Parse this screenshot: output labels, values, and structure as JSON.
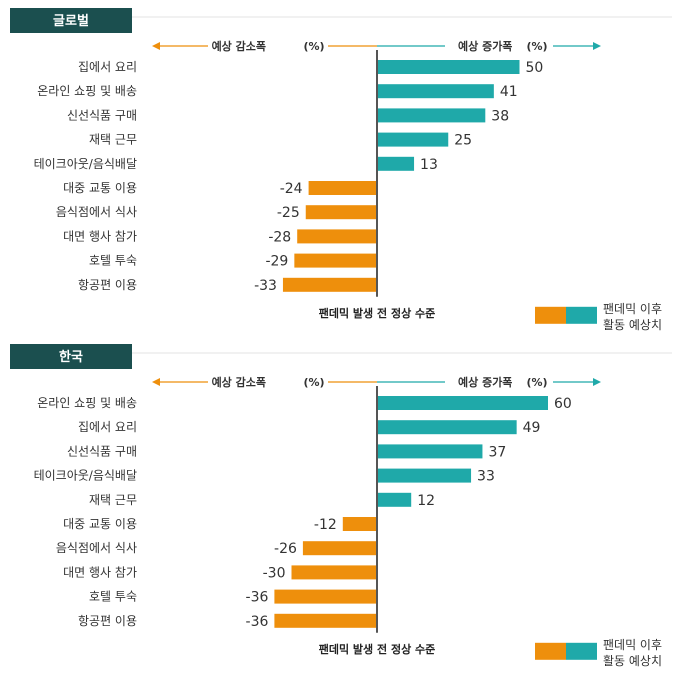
{
  "colors": {
    "increase": "#1fa9a9",
    "decrease": "#ee8f0c",
    "tag_bg": "#1b4f4f",
    "axis": "#555555"
  },
  "legend": {
    "line1": "팬데믹 이후",
    "line2": "활동 예상치"
  },
  "chart_data": [
    {
      "type": "bar",
      "orientation": "horizontal",
      "title": "글로벌",
      "decrease_header": "예상 감소폭",
      "increase_header": "예상 증가폭",
      "unit": "(%)",
      "baseline_label": "팬데믹 발생 전 정상 수준",
      "categories": [
        "집에서 요리",
        "온라인 쇼핑 및 배송",
        "신선식품 구매",
        "재택 근무",
        "테이크아웃/음식배달",
        "대중 교통 이용",
        "음식점에서 식사",
        "대면 행사 참가",
        "호텔 투숙",
        "항공편 이용"
      ],
      "values": [
        50,
        41,
        38,
        25,
        13,
        -24,
        -25,
        -28,
        -29,
        -33
      ],
      "value_labels": [
        "50",
        "41",
        "38",
        "25",
        "13",
        "-24",
        "-25",
        "-28",
        "-29",
        "-33"
      ]
    },
    {
      "type": "bar",
      "orientation": "horizontal",
      "title": "한국",
      "decrease_header": "예상 감소폭",
      "increase_header": "예상 증가폭",
      "unit": "(%)",
      "baseline_label": "팬데믹 발생 전 정상 수준",
      "categories": [
        "온라인 쇼핑 및 배송",
        "집에서 요리",
        "신선식품 구매",
        "테이크아웃/음식배달",
        "재택 근무",
        "대중 교통 이용",
        "음식점에서 식사",
        "대면 행사 참가",
        "호텔 투숙",
        "항공편 이용"
      ],
      "values": [
        60,
        49,
        37,
        33,
        12,
        -12,
        -26,
        -30,
        -36,
        -36
      ],
      "value_labels": [
        "60",
        "49",
        "37",
        "33",
        "12",
        "-12",
        "-26",
        "-30",
        "-36",
        "-36"
      ]
    }
  ]
}
